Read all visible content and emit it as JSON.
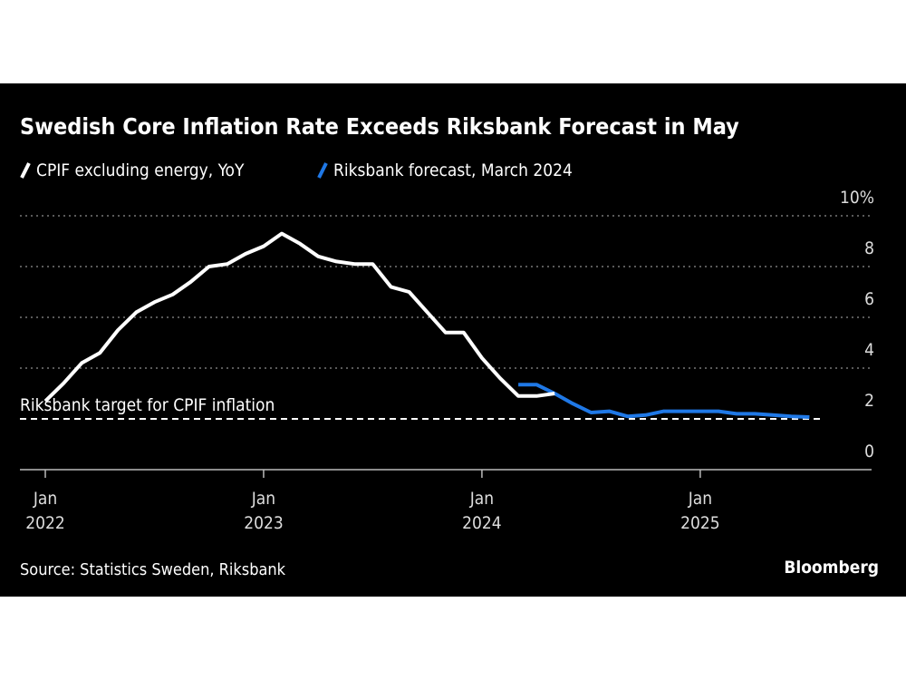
{
  "chart_data": {
    "type": "line",
    "title": "Swedish Core Inflation Rate Exceeds Riksbank Forecast in May",
    "source": "Source: Statistics Sweden, Riksbank",
    "logo": "Bloomberg",
    "ylim": [
      0,
      10
    ],
    "yticks": [
      {
        "value": 0,
        "label": "0"
      },
      {
        "value": 2,
        "label": "2"
      },
      {
        "value": 4,
        "label": "4"
      },
      {
        "value": 6,
        "label": "6"
      },
      {
        "value": 8,
        "label": "8"
      },
      {
        "value": 10,
        "label": "10%"
      }
    ],
    "xrange": [
      "2021-12",
      "2025-10"
    ],
    "xticks": [
      {
        "date": "2022-01",
        "line1": "Jan",
        "line2": "2022"
      },
      {
        "date": "2023-01",
        "line1": "Jan",
        "line2": "2023"
      },
      {
        "date": "2024-01",
        "line1": "Jan",
        "line2": "2024"
      },
      {
        "date": "2025-01",
        "line1": "Jan",
        "line2": "2025"
      }
    ],
    "grid": true,
    "legend_placement": "top-left",
    "reference_line": {
      "value": 2,
      "label": "Riksbank target for CPIF inflation",
      "color": "#ffffff",
      "end": "2025-07"
    },
    "series": [
      {
        "name": "CPIF excluding energy, YoY",
        "color": "#ffffff",
        "x": [
          "2022-01",
          "2022-02",
          "2022-03",
          "2022-04",
          "2022-05",
          "2022-06",
          "2022-07",
          "2022-08",
          "2022-09",
          "2022-10",
          "2022-11",
          "2022-12",
          "2023-01",
          "2023-02",
          "2023-03",
          "2023-04",
          "2023-05",
          "2023-06",
          "2023-07",
          "2023-08",
          "2023-09",
          "2023-10",
          "2023-11",
          "2023-12",
          "2024-01",
          "2024-02",
          "2024-03",
          "2024-04",
          "2024-05"
        ],
        "values": [
          2.7,
          3.4,
          4.2,
          4.6,
          5.5,
          6.2,
          6.6,
          6.9,
          7.4,
          8.0,
          8.1,
          8.5,
          8.8,
          9.3,
          8.9,
          8.4,
          8.2,
          8.1,
          8.1,
          7.2,
          7.0,
          6.2,
          5.4,
          5.4,
          4.4,
          3.6,
          2.9,
          2.9,
          3.0
        ]
      },
      {
        "name": "Riksbank forecast, March 2024",
        "color": "#1f78e6",
        "x": [
          "2024-03",
          "2024-04",
          "2024-05",
          "2024-06",
          "2024-07",
          "2024-08",
          "2024-09",
          "2024-10",
          "2024-11",
          "2024-12",
          "2025-01",
          "2025-02",
          "2025-03",
          "2025-04",
          "2025-05",
          "2025-06",
          "2025-07"
        ],
        "values": [
          3.35,
          3.35,
          3.0,
          2.6,
          2.25,
          2.3,
          2.1,
          2.15,
          2.3,
          2.3,
          2.3,
          2.3,
          2.2,
          2.2,
          2.15,
          2.1,
          2.07
        ]
      }
    ]
  }
}
